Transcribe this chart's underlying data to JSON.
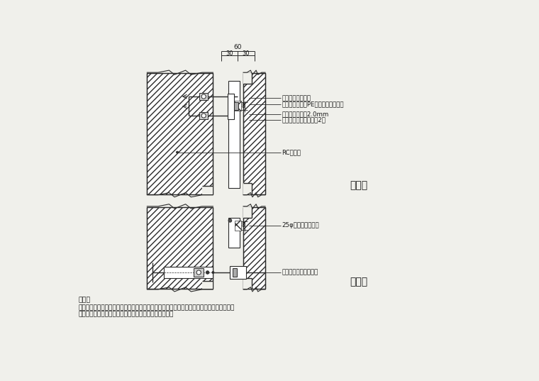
{
  "bg_color": "#f0f0eb",
  "line_color": "#2a2a2a",
  "title_立剖面": "立剖面",
  "title_半剖面": "半剖面",
  "annotation_1": "镀锌钢质螺丝锁固",
  "annotation_2": "填缝剂依缝发泡PE棒衬底（裂硫胶）",
  "annotation_3": "不锈钢固定片厚2.0mm",
  "annotation_4": "膨胀螺栓固定每片石板2尺",
  "annotation_5": "RC或红砖",
  "annotation_6": "25φ不锈钢水平扣件",
  "annotation_7": "不锈钢固定片详立剖面",
  "note_title": "说明：",
  "note_line1": "承商装石材施作前，应依石材分割尺寸配置镀锌钢架（防扩处理），并提送结构分析，经甲方",
  "note_line2": "审查後方得施作，其费用已含於标单项目，不另行计价。",
  "dim_60": "60",
  "dim_30_left": "30",
  "dim_30_right": "30"
}
